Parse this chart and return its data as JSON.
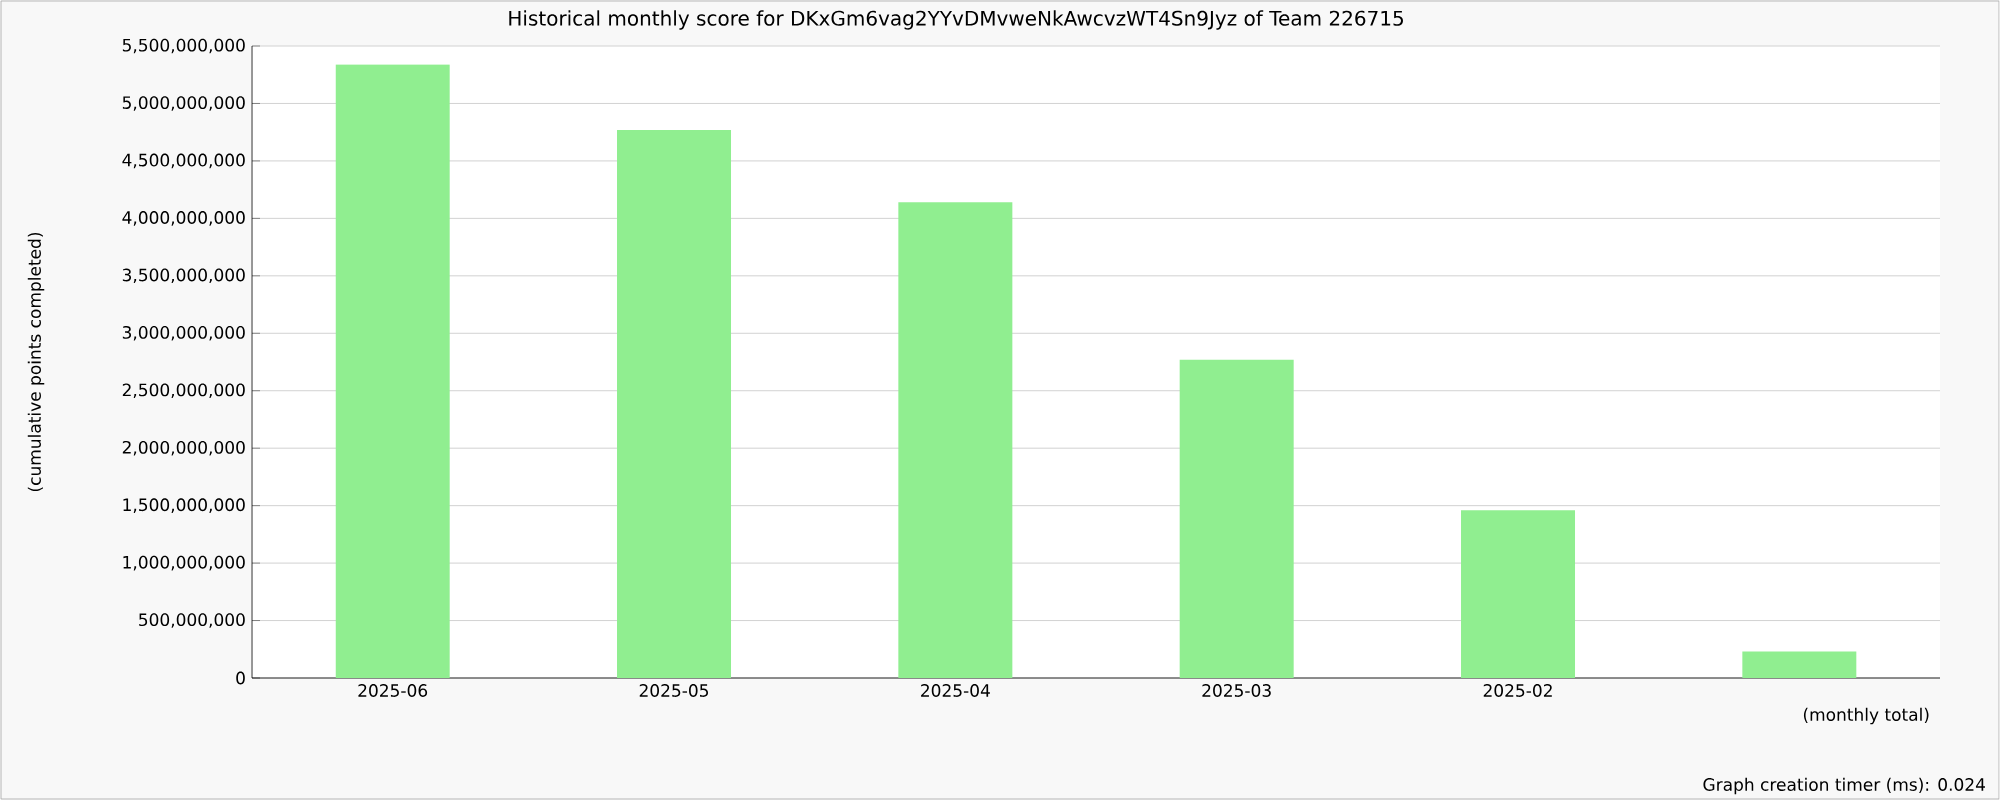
{
  "chart_data": {
    "type": "bar",
    "title": "Historical monthly score for DKxGm6vag2YYvDMvweNkAwcvzWT4Sn9Jyz of Team 226715",
    "xlabel": "(monthly total)",
    "ylabel": "(cumulative points completed)",
    "annotations": [
      "Graph creation timer (ms): 0.024"
    ],
    "categories": [
      "2025-06",
      "2025-05",
      "2025-04",
      "2025-03",
      "2025-02",
      null
    ],
    "values": [
      5340000000,
      4770000000,
      4140000000,
      2770000000,
      1460000000,
      230000000
    ],
    "color": "#90ee90",
    "ylim": [
      0,
      5500000000
    ],
    "yticks": [
      0,
      {
        "value": 500000000,
        "label": "500,000,000"
      },
      {
        "value": 1000000000,
        "label": "1,000,000,000"
      },
      {
        "value": 1500000000,
        "label": "1,500,000,000"
      },
      {
        "value": 2000000000,
        "label": "2,000,000,000"
      },
      {
        "value": 2500000000,
        "label": "2,500,000,000"
      },
      {
        "value": 3000000000,
        "label": "3,000,000,000"
      },
      {
        "value": 3500000000,
        "label": "3,500,000,000"
      },
      {
        "value": 4000000000,
        "label": "4,000,000,000"
      },
      {
        "value": 4500000000,
        "label": "4,500,000,000"
      },
      {
        "value": 5000000000,
        "label": "5,000,000,000"
      },
      {
        "value": 5500000000,
        "label": "5,500,000,000"
      }
    ],
    "grid": "y"
  }
}
